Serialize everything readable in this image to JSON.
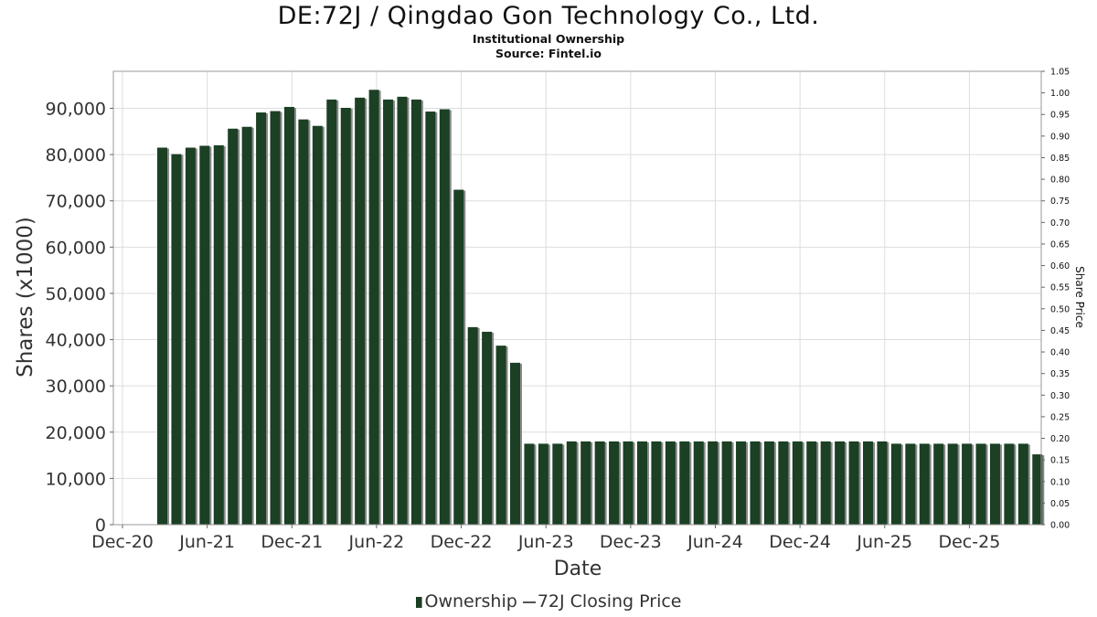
{
  "header": {
    "title": "DE:72J / Qingdao Gon Technology Co., Ltd.",
    "subtitle": "Institutional Ownership",
    "source": "Source: Fintel.io"
  },
  "legend": {
    "ownership": "Ownership",
    "price": "72J Closing Price"
  },
  "colors": {
    "bar": "#1b4024",
    "bar_shadow": "#8a8a8a",
    "grid": "#dddddd"
  },
  "chart_data": {
    "type": "bar",
    "title": "DE:72J / Qingdao Gon Technology Co., Ltd.",
    "xlabel": "Date",
    "ylabel": "Shares (x1000)",
    "y2label": "Share Price",
    "ylim": [
      0,
      98000
    ],
    "y2lim": [
      0,
      1.05
    ],
    "yticks": [
      0,
      10000,
      20000,
      30000,
      40000,
      50000,
      60000,
      70000,
      80000,
      90000
    ],
    "ytick_labels": [
      "0",
      "10,000",
      "20,000",
      "30,000",
      "40,000",
      "50,000",
      "60,000",
      "70,000",
      "80,000",
      "90,000"
    ],
    "y2ticks": [
      "0.00",
      "0.05",
      "0.10",
      "0.15",
      "0.20",
      "0.25",
      "0.30",
      "0.35",
      "0.40",
      "0.45",
      "0.50",
      "0.55",
      "0.60",
      "0.65",
      "0.70",
      "0.75",
      "0.80",
      "0.85",
      "0.90",
      "0.95",
      "1.00",
      "1.05"
    ],
    "xticks": [
      "Dec-20",
      "Jun-21",
      "Dec-21",
      "Jun-22",
      "Dec-22",
      "Jun-23",
      "Dec-23",
      "Jun-24",
      "Dec-24",
      "Jun-25",
      "Dec-25"
    ],
    "grid": true,
    "legend_position": "bottom-center",
    "series": [
      {
        "name": "Ownership",
        "values": [
          81500,
          80100,
          81500,
          81900,
          82000,
          85600,
          86000,
          89100,
          89400,
          90300,
          87600,
          86200,
          91900,
          90100,
          92300,
          94000,
          91900,
          92500,
          91900,
          89300,
          89800,
          72400,
          42700,
          41700,
          38700,
          35000,
          17500,
          17500,
          17500,
          18000,
          18000,
          18000,
          18000,
          18000,
          18000,
          18000,
          18000,
          18000,
          18000,
          18000,
          18000,
          18000,
          18000,
          18000,
          18000,
          18000,
          18000,
          18000,
          18000,
          18000,
          18000,
          18000,
          17500,
          17500,
          17500,
          17500,
          17500,
          17500,
          17500,
          17500,
          17500,
          17500,
          15200
        ]
      }
    ]
  }
}
